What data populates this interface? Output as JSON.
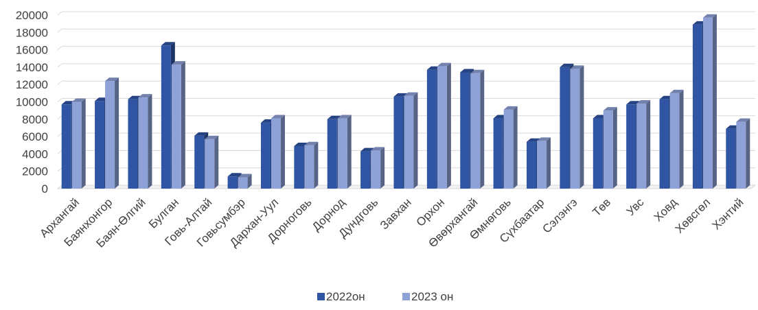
{
  "chart_data": {
    "type": "bar",
    "style": "3d-clustered-column",
    "categories": [
      "Архангай",
      "Баянхонгор",
      "Баян-Өлгий",
      "Булган",
      "Говь-Алтай",
      "Говьсумбэр",
      "Дархан-Уул",
      "Дорноговь",
      "Дорнод",
      "Дундговь",
      "Завхан",
      "Орхон",
      "Өвөрхангай",
      "Өмнөговь",
      "Сүхбаатар",
      "Сэлэнгэ",
      "Төв",
      "Увс",
      "Ховд",
      "Хөвсгөл",
      "Хэнтий"
    ],
    "series": [
      {
        "name": "2022он",
        "color": "#2F55A4",
        "values": [
          9700,
          10100,
          10300,
          16500,
          6100,
          1400,
          7600,
          4900,
          8000,
          4300,
          10600,
          13700,
          13400,
          8100,
          5400,
          14000,
          8100,
          9700,
          10300,
          18900,
          6900
        ]
      },
      {
        "name": "2023 он",
        "color": "#8EA2D8",
        "values": [
          10000,
          12400,
          10500,
          14300,
          5700,
          1300,
          8100,
          5000,
          8100,
          4400,
          10700,
          14100,
          13300,
          9100,
          5500,
          13800,
          9000,
          9800,
          11000,
          19700,
          7700
        ]
      }
    ],
    "ylim": [
      0,
      20000
    ],
    "yticks": [
      "0",
      "2000",
      "4000",
      "6000",
      "8000",
      "10000",
      "12000",
      "14000",
      "16000",
      "18000",
      "20000"
    ],
    "grid": true,
    "legend_position": "bottom",
    "title": "",
    "xlabel": "",
    "ylabel": ""
  }
}
